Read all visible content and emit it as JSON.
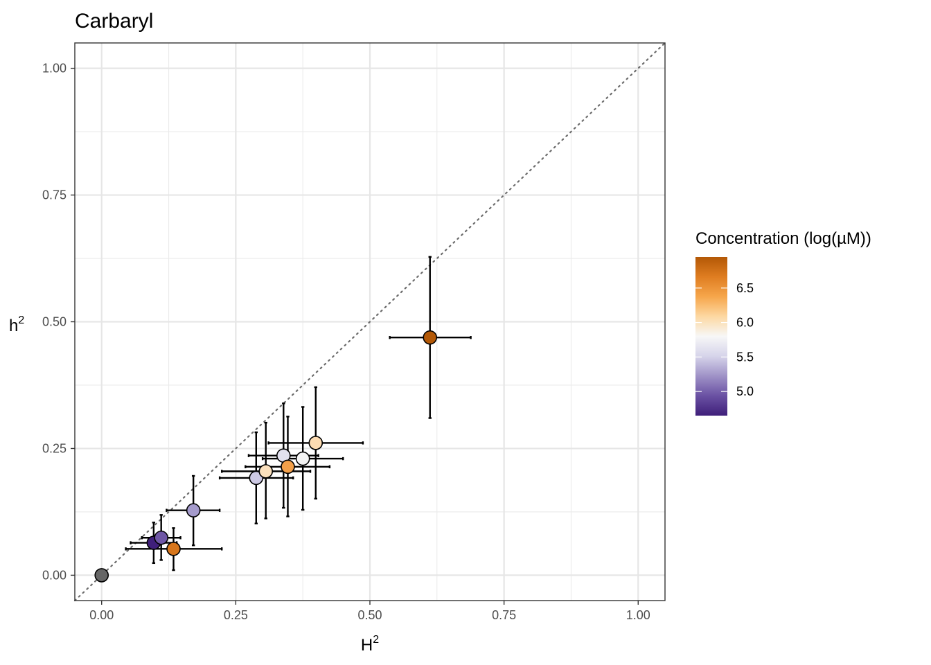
{
  "chart_data": {
    "type": "scatter",
    "title": "Carbaryl",
    "xlabel": "H",
    "xlabel_sup": "2",
    "ylabel": "h",
    "ylabel_sup": "2",
    "xlim": [
      -0.05,
      1.05
    ],
    "ylim": [
      -0.05,
      1.05
    ],
    "x_ticks": [
      0.0,
      0.25,
      0.5,
      0.75,
      1.0
    ],
    "x_tick_labels": [
      "0.00",
      "0.25",
      "0.50",
      "0.75",
      "1.00"
    ],
    "y_ticks": [
      0.0,
      0.25,
      0.5,
      0.75,
      1.0
    ],
    "y_tick_labels": [
      "0.00",
      "0.25",
      "0.50",
      "0.75",
      "1.00"
    ],
    "grid": true,
    "reference_line": "y = x (dotted)",
    "legend": {
      "title": "Concentration (log(µM))",
      "position": "right",
      "range": [
        4.65,
        6.95
      ],
      "ticks": [
        5.0,
        5.5,
        6.0,
        6.5
      ],
      "tick_labels": [
        "5.0",
        "5.5",
        "6.0",
        "6.5"
      ],
      "colors": [
        "#3f1f7a",
        "#6a51a3",
        "#9f92c7",
        "#d6d4ea",
        "#f7f7f7",
        "#fdd8a2",
        "#f6a64b",
        "#df7d21",
        "#b35806"
      ]
    },
    "points": [
      {
        "H2": 0.0,
        "h2": 0.0,
        "H2_lo": 0.0,
        "H2_hi": 0.0,
        "h2_lo": 0.0,
        "h2_hi": 0.0,
        "conc": null,
        "color": "#666666"
      },
      {
        "H2": 0.097,
        "h2": 0.064,
        "H2_lo": 0.054,
        "H2_hi": 0.14,
        "h2_lo": 0.024,
        "h2_hi": 0.104,
        "conc": 4.7,
        "color": "#3f1f7a"
      },
      {
        "H2": 0.111,
        "h2": 0.074,
        "H2_lo": 0.075,
        "H2_hi": 0.147,
        "h2_lo": 0.03,
        "h2_hi": 0.119,
        "conc": 5.05,
        "color": "#6e56a5"
      },
      {
        "H2": 0.134,
        "h2": 0.052,
        "H2_lo": 0.045,
        "H2_hi": 0.224,
        "h2_lo": 0.01,
        "h2_hi": 0.093,
        "conc": 6.65,
        "color": "#d8761b"
      },
      {
        "H2": 0.171,
        "h2": 0.128,
        "H2_lo": 0.121,
        "H2_hi": 0.22,
        "h2_lo": 0.059,
        "h2_hi": 0.196,
        "conc": 5.2,
        "color": "#a59bcc"
      },
      {
        "H2": 0.288,
        "h2": 0.192,
        "H2_lo": 0.22,
        "H2_hi": 0.357,
        "h2_lo": 0.102,
        "h2_hi": 0.282,
        "conc": 5.45,
        "color": "#cdc9e4"
      },
      {
        "H2": 0.306,
        "h2": 0.205,
        "H2_lo": 0.224,
        "H2_hi": 0.389,
        "h2_lo": 0.112,
        "h2_hi": 0.301,
        "conc": 6.1,
        "color": "#fbe0bd"
      },
      {
        "H2": 0.339,
        "h2": 0.236,
        "H2_lo": 0.274,
        "H2_hi": 0.404,
        "h2_lo": 0.133,
        "h2_hi": 0.339,
        "conc": 5.65,
        "color": "#e2e1ef"
      },
      {
        "H2": 0.347,
        "h2": 0.214,
        "H2_lo": 0.268,
        "H2_hi": 0.425,
        "h2_lo": 0.116,
        "h2_hi": 0.313,
        "conc": 6.5,
        "color": "#f3a04a"
      },
      {
        "H2": 0.375,
        "h2": 0.23,
        "H2_lo": 0.3,
        "H2_hi": 0.45,
        "h2_lo": 0.129,
        "h2_hi": 0.332,
        "conc": 5.85,
        "color": "#f4f4f4"
      },
      {
        "H2": 0.399,
        "h2": 0.261,
        "H2_lo": 0.311,
        "H2_hi": 0.487,
        "h2_lo": 0.151,
        "h2_hi": 0.371,
        "conc": 6.15,
        "color": "#fddcb2"
      },
      {
        "H2": 0.612,
        "h2": 0.469,
        "H2_lo": 0.537,
        "H2_hi": 0.688,
        "h2_lo": 0.31,
        "h2_hi": 0.628,
        "conc": 6.9,
        "color": "#b35806"
      }
    ]
  }
}
